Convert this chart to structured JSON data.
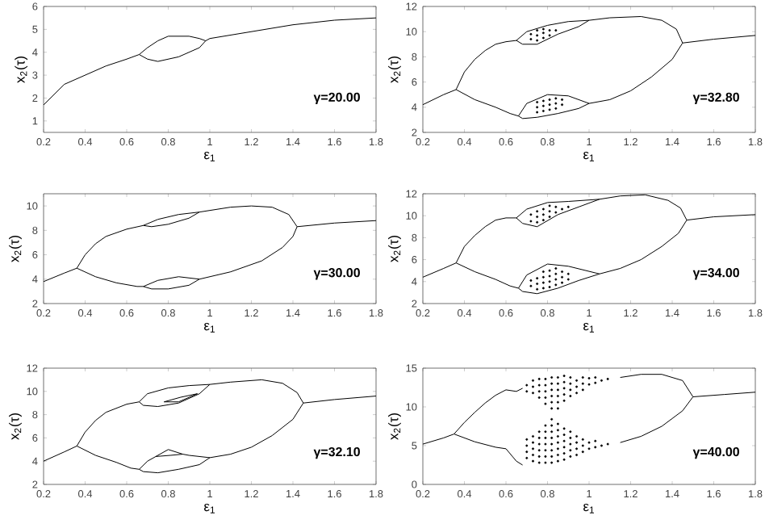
{
  "chart_data": [
    {
      "type": "line",
      "xlabel": "ε$_{1}$",
      "ylabel": "x$_{2}$(τ)",
      "annotations": [
        "γ=20.00"
      ],
      "xlim": [
        0.2,
        1.8
      ],
      "xticks": [
        0.2,
        0.4,
        0.6,
        0.8,
        1,
        1.2,
        1.4,
        1.6,
        1.8
      ],
      "ylim": [
        0.5,
        6
      ],
      "yticks": [
        1,
        2,
        3,
        4,
        5,
        6
      ],
      "series": [
        {
          "color": "#000000",
          "x": [
            0.2,
            0.3,
            0.4,
            0.5,
            0.6,
            0.66,
            0.7,
            0.75,
            0.8,
            0.9,
            0.95,
            0.98,
            1.0,
            1.2,
            1.4,
            1.6,
            1.8
          ],
          "values": [
            1.7,
            2.6,
            3.0,
            3.4,
            3.7,
            3.9,
            4.2,
            4.5,
            4.7,
            4.7,
            4.6,
            4.5,
            4.6,
            4.9,
            5.2,
            5.4,
            5.5
          ]
        },
        {
          "color": "#000000",
          "x": [
            0.66,
            0.7,
            0.75,
            0.85,
            0.95,
            0.98
          ],
          "values": [
            3.9,
            3.7,
            3.6,
            3.8,
            4.2,
            4.5
          ]
        }
      ]
    },
    {
      "type": "line",
      "xlabel": "ε$_{1}$",
      "ylabel": "x$_{2}$(τ)",
      "annotations": [
        "γ=32.80"
      ],
      "xlim": [
        0.2,
        1.8
      ],
      "xticks": [
        0.2,
        0.4,
        0.6,
        0.8,
        1,
        1.2,
        1.4,
        1.6,
        1.8
      ],
      "ylim": [
        2,
        12
      ],
      "yticks": [
        2,
        4,
        6,
        8,
        10,
        12
      ],
      "series": [
        {
          "color": "#000000",
          "x": [
            0.2,
            0.3,
            0.36,
            0.4,
            0.45,
            0.5,
            0.55,
            0.6,
            0.65,
            0.7,
            0.8,
            0.9,
            1.0,
            1.1,
            1.25,
            1.35,
            1.42,
            1.45,
            1.6,
            1.8
          ],
          "values": [
            4.2,
            5.0,
            5.4,
            6.8,
            7.8,
            8.5,
            9.0,
            9.2,
            9.3,
            10.0,
            10.5,
            10.8,
            10.9,
            11.1,
            11.2,
            10.9,
            10.2,
            9.1,
            9.4,
            9.7
          ]
        },
        {
          "color": "#000000",
          "x": [
            0.36,
            0.45,
            0.55,
            0.62,
            0.66,
            0.68,
            0.75,
            0.85,
            0.95,
            1.0,
            1.1,
            1.2,
            1.3,
            1.4,
            1.45
          ],
          "values": [
            5.4,
            4.6,
            4.0,
            3.5,
            3.3,
            3.1,
            3.2,
            3.5,
            3.9,
            4.3,
            4.6,
            5.3,
            6.4,
            7.8,
            9.1
          ]
        },
        {
          "color": "#000000",
          "x": [
            0.65,
            0.68,
            0.75,
            0.85,
            0.95,
            1.0
          ],
          "values": [
            9.3,
            9.0,
            9.0,
            9.8,
            10.4,
            10.9
          ]
        },
        {
          "color": "#000000",
          "x": [
            0.66,
            0.7,
            0.8,
            0.9,
            1.0
          ],
          "values": [
            3.3,
            4.3,
            5.0,
            4.9,
            4.3
          ]
        },
        {
          "type": "scatter",
          "marker": "circle",
          "color": "#000000",
          "x": [
            0.72,
            0.72,
            0.75,
            0.75,
            0.75,
            0.78,
            0.78,
            0.78,
            0.81,
            0.81,
            0.84
          ],
          "values": [
            9.4,
            9.8,
            9.3,
            9.7,
            10.1,
            9.5,
            9.9,
            10.2,
            9.7,
            10.1,
            10.1
          ]
        },
        {
          "type": "scatter",
          "marker": "circle",
          "color": "#000000",
          "x": [
            0.75,
            0.75,
            0.75,
            0.78,
            0.78,
            0.78,
            0.81,
            0.81,
            0.81,
            0.84,
            0.84,
            0.84,
            0.87,
            0.87
          ],
          "values": [
            3.6,
            4.0,
            4.4,
            3.7,
            4.1,
            4.5,
            3.8,
            4.2,
            4.6,
            3.9,
            4.3,
            4.7,
            4.2,
            4.6
          ]
        }
      ]
    },
    {
      "type": "line",
      "xlabel": "ε$_{1}$",
      "ylabel": "x$_{2}$(τ)",
      "annotations": [
        "γ=30.00"
      ],
      "xlim": [
        0.2,
        1.8
      ],
      "xticks": [
        0.2,
        0.4,
        0.6,
        0.8,
        1,
        1.2,
        1.4,
        1.6,
        1.8
      ],
      "ylim": [
        2,
        11
      ],
      "yticks": [
        2,
        4,
        6,
        8,
        10
      ],
      "series": [
        {
          "color": "#000000",
          "x": [
            0.2,
            0.3,
            0.36,
            0.4,
            0.45,
            0.5,
            0.6,
            0.68,
            0.75,
            0.85,
            0.95,
            1.1,
            1.2,
            1.3,
            1.38,
            1.42,
            1.6,
            1.8
          ],
          "values": [
            3.8,
            4.5,
            4.9,
            6.0,
            6.9,
            7.5,
            8.1,
            8.4,
            8.9,
            9.3,
            9.5,
            9.9,
            10.0,
            9.9,
            9.3,
            8.3,
            8.6,
            8.8
          ]
        },
        {
          "color": "#000000",
          "x": [
            0.36,
            0.45,
            0.55,
            0.65,
            0.68,
            0.72,
            0.8,
            0.9,
            0.95,
            1.1,
            1.25,
            1.35,
            1.4,
            1.42
          ],
          "values": [
            4.9,
            4.2,
            3.7,
            3.4,
            3.4,
            3.2,
            3.2,
            3.5,
            4.0,
            4.6,
            5.5,
            6.6,
            7.5,
            8.3
          ]
        },
        {
          "color": "#000000",
          "x": [
            0.68,
            0.72,
            0.8,
            0.9,
            0.95
          ],
          "values": [
            8.4,
            8.3,
            8.5,
            9.0,
            9.5
          ]
        },
        {
          "color": "#000000",
          "x": [
            0.68,
            0.75,
            0.85,
            0.95
          ],
          "values": [
            3.4,
            3.9,
            4.2,
            4.0
          ]
        }
      ]
    },
    {
      "type": "line",
      "xlabel": "ε$_{1}$",
      "ylabel": "x$_{2}$(τ)",
      "annotations": [
        "γ=34.00"
      ],
      "xlim": [
        0.2,
        1.8
      ],
      "xticks": [
        0.2,
        0.4,
        0.6,
        0.8,
        1,
        1.2,
        1.4,
        1.6,
        1.8
      ],
      "ylim": [
        2,
        12
      ],
      "yticks": [
        2,
        4,
        6,
        8,
        10,
        12
      ],
      "series": [
        {
          "color": "#000000",
          "x": [
            0.2,
            0.3,
            0.36,
            0.4,
            0.45,
            0.5,
            0.55,
            0.6,
            0.65,
            0.7,
            0.8,
            0.9,
            1.05,
            1.15,
            1.27,
            1.38,
            1.44,
            1.47,
            1.6,
            1.8
          ],
          "values": [
            4.4,
            5.2,
            5.7,
            7.2,
            8.2,
            9.0,
            9.6,
            9.8,
            9.8,
            10.6,
            11.2,
            11.3,
            11.5,
            11.8,
            11.9,
            11.4,
            10.7,
            9.6,
            9.9,
            10.1
          ]
        },
        {
          "color": "#000000",
          "x": [
            0.36,
            0.45,
            0.55,
            0.62,
            0.66,
            0.68,
            0.75,
            0.85,
            0.95,
            1.05,
            1.15,
            1.25,
            1.35,
            1.43,
            1.47
          ],
          "values": [
            5.7,
            4.9,
            4.2,
            3.6,
            3.4,
            3.1,
            2.9,
            3.4,
            4.1,
            4.7,
            5.2,
            6.0,
            7.2,
            8.4,
            9.6
          ]
        },
        {
          "color": "#000000",
          "x": [
            0.65,
            0.68,
            0.75,
            0.85,
            0.95,
            1.05
          ],
          "values": [
            9.8,
            9.3,
            9.0,
            10.1,
            10.8,
            11.5
          ]
        },
        {
          "color": "#000000",
          "x": [
            0.66,
            0.7,
            0.8,
            0.9,
            1.05
          ],
          "values": [
            3.4,
            4.6,
            5.6,
            5.4,
            4.7
          ]
        },
        {
          "type": "scatter",
          "marker": "circle",
          "color": "#000000",
          "x": [
            0.72,
            0.72,
            0.75,
            0.75,
            0.75,
            0.78,
            0.78,
            0.78,
            0.81,
            0.81,
            0.81,
            0.84,
            0.84,
            0.87,
            0.9
          ],
          "values": [
            9.5,
            10.1,
            9.4,
            9.9,
            10.4,
            9.6,
            10.1,
            10.6,
            9.9,
            10.4,
            10.9,
            10.3,
            10.8,
            10.6,
            10.8
          ]
        },
        {
          "type": "scatter",
          "marker": "circle",
          "color": "#000000",
          "x": [
            0.72,
            0.72,
            0.75,
            0.75,
            0.75,
            0.78,
            0.78,
            0.78,
            0.78,
            0.81,
            0.81,
            0.81,
            0.81,
            0.84,
            0.84,
            0.84,
            0.84,
            0.87,
            0.87,
            0.87,
            0.9,
            0.9
          ],
          "values": [
            3.6,
            4.1,
            3.3,
            3.8,
            4.3,
            3.4,
            3.9,
            4.4,
            4.9,
            3.5,
            4.0,
            4.5,
            5.0,
            3.7,
            4.2,
            4.7,
            5.2,
            3.9,
            4.4,
            4.9,
            4.2,
            4.7
          ]
        }
      ]
    },
    {
      "type": "line",
      "xlabel": "ε$_{1}$",
      "ylabel": "x$_{2}$(τ)",
      "annotations": [
        "γ=32.10"
      ],
      "xlim": [
        0.2,
        1.8
      ],
      "xticks": [
        0.2,
        0.4,
        0.6,
        0.8,
        1,
        1.2,
        1.4,
        1.6,
        1.8
      ],
      "ylim": [
        2,
        12
      ],
      "yticks": [
        2,
        4,
        6,
        8,
        10,
        12
      ],
      "series": [
        {
          "color": "#000000",
          "x": [
            0.2,
            0.3,
            0.36,
            0.4,
            0.45,
            0.5,
            0.6,
            0.66,
            0.7,
            0.8,
            0.9,
            1.0,
            1.1,
            1.25,
            1.35,
            1.42,
            1.45,
            1.6,
            1.8
          ],
          "values": [
            4.0,
            4.8,
            5.3,
            6.5,
            7.5,
            8.2,
            8.9,
            9.1,
            9.8,
            10.3,
            10.5,
            10.6,
            10.8,
            11.0,
            10.7,
            9.9,
            9.0,
            9.3,
            9.6
          ]
        },
        {
          "color": "#000000",
          "x": [
            0.36,
            0.45,
            0.55,
            0.62,
            0.66,
            0.68,
            0.75,
            0.85,
            0.95,
            1.0,
            1.1,
            1.2,
            1.3,
            1.4,
            1.45
          ],
          "values": [
            5.3,
            4.5,
            3.9,
            3.4,
            3.3,
            3.1,
            3.0,
            3.3,
            3.7,
            4.3,
            4.6,
            5.2,
            6.2,
            7.6,
            9.0
          ]
        },
        {
          "color": "#000000",
          "x": [
            0.66,
            0.68,
            0.75,
            0.85,
            0.95,
            1.0
          ],
          "values": [
            9.1,
            8.8,
            8.7,
            9.0,
            9.8,
            10.6
          ]
        },
        {
          "color": "#000000",
          "x": [
            0.66,
            0.7,
            0.74,
            0.81,
            0.87,
            0.9,
            1.0
          ],
          "values": [
            3.3,
            4.0,
            4.4,
            4.5,
            4.6,
            4.5,
            4.3
          ]
        },
        {
          "color": "#000000",
          "x": [
            0.74,
            0.8,
            0.87
          ],
          "values": [
            4.4,
            5.0,
            4.6
          ]
        },
        {
          "color": "#000000",
          "x": [
            0.78,
            0.86,
            0.94
          ],
          "values": [
            9.1,
            9.5,
            9.8
          ]
        },
        {
          "color": "#000000",
          "x": [
            0.78,
            0.85,
            0.94
          ],
          "values": [
            9.1,
            9.1,
            9.8
          ]
        }
      ]
    },
    {
      "type": "line",
      "xlabel": "ε$_{1}$",
      "ylabel": "x$_{2}$(τ)",
      "annotations": [
        "γ=40.00"
      ],
      "xlim": [
        0.2,
        1.8
      ],
      "xticks": [
        0.2,
        0.4,
        0.6,
        0.8,
        1,
        1.2,
        1.4,
        1.6,
        1.8
      ],
      "ylim": [
        0,
        15
      ],
      "yticks": [
        0,
        5,
        10,
        15
      ],
      "series": [
        {
          "color": "#000000",
          "x": [
            0.2,
            0.3,
            0.35,
            0.4,
            0.45,
            0.5,
            0.55,
            0.6,
            0.65,
            0.68,
            null,
            1.15,
            1.25,
            1.35,
            1.45,
            1.5,
            1.65,
            1.8
          ],
          "values": [
            5.2,
            6.0,
            6.5,
            8.0,
            9.3,
            10.5,
            11.5,
            12.2,
            12.0,
            12.4,
            null,
            13.8,
            14.2,
            14.2,
            13.4,
            11.3,
            11.6,
            11.9
          ]
        },
        {
          "color": "#000000",
          "x": [
            0.35,
            0.45,
            0.55,
            0.6,
            0.65,
            0.68,
            null,
            1.15,
            1.25,
            1.35,
            1.45,
            1.5
          ],
          "values": [
            6.5,
            5.5,
            4.8,
            4.6,
            3.0,
            2.5,
            null,
            5.4,
            6.2,
            7.5,
            9.5,
            11.3
          ]
        },
        {
          "type": "scatter",
          "marker": "circle",
          "color": "#000000",
          "x": [
            0.7,
            0.7,
            0.73,
            0.73,
            0.73,
            0.76,
            0.76,
            0.76,
            0.76,
            0.79,
            0.79,
            0.79,
            0.79,
            0.79,
            0.82,
            0.82,
            0.82,
            0.82,
            0.82,
            0.82,
            0.85,
            0.85,
            0.85,
            0.85,
            0.85,
            0.85,
            0.88,
            0.88,
            0.88,
            0.88,
            0.88,
            0.91,
            0.91,
            0.91,
            0.91,
            0.94,
            0.94,
            0.94,
            0.97,
            0.97,
            0.97,
            1.0,
            1.0,
            1.03,
            1.03,
            1.06,
            1.09
          ],
          "values": [
            12.0,
            12.8,
            11.8,
            12.6,
            13.4,
            11.2,
            12.0,
            12.8,
            13.6,
            10.4,
            11.2,
            12.0,
            12.8,
            13.6,
            9.8,
            10.6,
            11.4,
            12.2,
            13.0,
            13.8,
            9.8,
            10.6,
            11.4,
            12.2,
            13.0,
            13.8,
            10.8,
            11.6,
            12.4,
            13.2,
            14.0,
            11.4,
            12.2,
            13.0,
            13.8,
            11.8,
            12.6,
            13.4,
            12.2,
            13.0,
            13.8,
            12.9,
            13.7,
            13.1,
            13.8,
            13.4,
            13.6
          ]
        },
        {
          "type": "scatter",
          "marker": "circle",
          "color": "#000000",
          "x": [
            0.7,
            0.7,
            0.7,
            0.7,
            0.73,
            0.73,
            0.73,
            0.73,
            0.73,
            0.76,
            0.76,
            0.76,
            0.76,
            0.76,
            0.76,
            0.79,
            0.79,
            0.79,
            0.79,
            0.79,
            0.79,
            0.79,
            0.82,
            0.82,
            0.82,
            0.82,
            0.82,
            0.82,
            0.82,
            0.82,
            0.85,
            0.85,
            0.85,
            0.85,
            0.85,
            0.85,
            0.85,
            0.88,
            0.88,
            0.88,
            0.88,
            0.88,
            0.88,
            0.91,
            0.91,
            0.91,
            0.91,
            0.91,
            0.94,
            0.94,
            0.94,
            0.94,
            0.97,
            0.97,
            0.97,
            1.0,
            1.0,
            1.03,
            1.03,
            1.06,
            1.09
          ],
          "values": [
            3.4,
            4.2,
            5.0,
            5.8,
            3.0,
            3.8,
            4.6,
            5.4,
            6.2,
            2.8,
            3.6,
            4.4,
            5.2,
            6.0,
            6.8,
            2.8,
            3.6,
            4.4,
            5.2,
            6.0,
            6.8,
            7.6,
            2.8,
            3.6,
            4.4,
            5.2,
            6.0,
            6.8,
            7.6,
            8.4,
            3.0,
            3.8,
            4.6,
            5.4,
            6.2,
            7.0,
            7.8,
            3.2,
            4.0,
            4.8,
            5.6,
            6.4,
            7.2,
            3.6,
            4.4,
            5.2,
            6.0,
            6.8,
            3.8,
            4.6,
            5.4,
            6.2,
            4.2,
            5.0,
            5.8,
            4.6,
            5.4,
            4.8,
            5.6,
            5.0,
            5.2
          ]
        }
      ]
    }
  ]
}
